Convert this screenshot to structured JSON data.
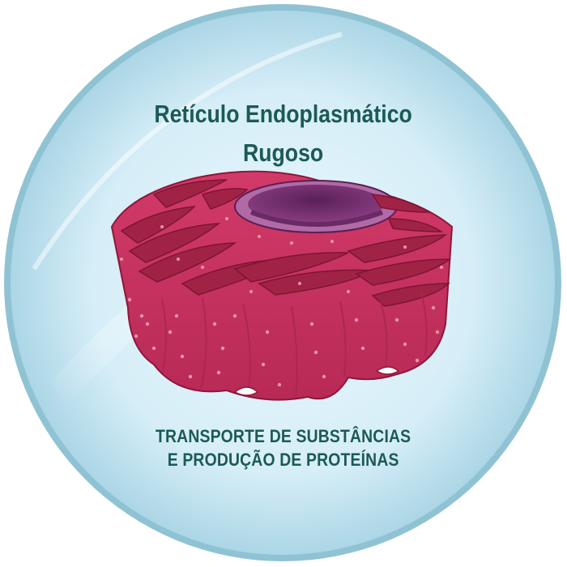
{
  "title": {
    "line1": "Retículo Endoplasmático",
    "line2": "Rugoso"
  },
  "caption": {
    "line1": "TRANSPORTE DE SUBSTÂNCIAS",
    "line2": "E PRODUÇÃO DE PROTEÍNAS"
  },
  "colors": {
    "title_text": "#1c5a55",
    "caption_text": "#1c5a55",
    "disc_center": "#e4f4fb",
    "disc_edge": "#b7ddeb",
    "disc_rim": "#8cbfd0",
    "membrane": "#c9325f",
    "membrane_dark": "#8e1738",
    "lumen": "#9e2244",
    "ribosome": "#e98aa4",
    "nucleus": "#6a2a66",
    "nucleus_light": "#b06aa6"
  },
  "icons": {
    "organelle": "rough-endoplasmic-reticulum-illustration"
  }
}
